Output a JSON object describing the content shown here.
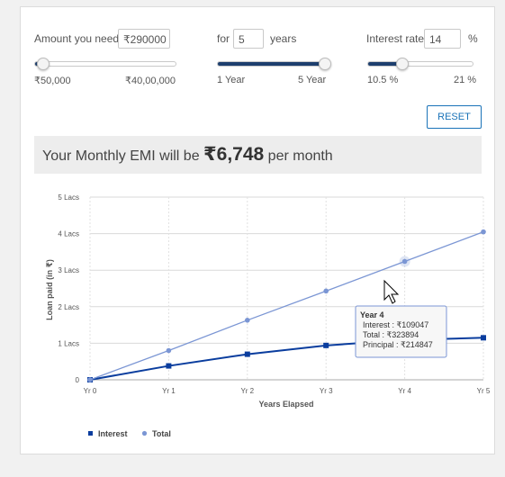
{
  "amount": {
    "label": "Amount you need",
    "prefix": "₹",
    "value": "290000",
    "min_label": "₹50,000",
    "max_label": "₹40,00,000",
    "level": 0.061
  },
  "tenure": {
    "label": "for",
    "value": "5",
    "unit": "years",
    "min_label": "1 Year",
    "max_label": "5 Year",
    "level": 1.0
  },
  "interest": {
    "label": "Interest rate",
    "value": "14",
    "unit": "%",
    "min_label": "10.5 %",
    "max_label": "21 %",
    "level": 0.333
  },
  "reset_label": "RESET",
  "emi": {
    "prefix": "Your Monthly EMI will be ",
    "value": "₹6,748",
    "suffix": " per month"
  },
  "tooltip": {
    "title": "Year 4",
    "lines": [
      "Interest : ₹109047",
      "Total : ₹323894",
      "Principal : ₹214847"
    ]
  },
  "colors": {
    "accent": "#1d3f6e",
    "button": "#1a73b8",
    "interest_series": "#0a3d9e",
    "total_series": "#7b96d4"
  },
  "chart_data": {
    "type": "line",
    "xlabel": "Years Elapsed",
    "ylabel": "Loan paid (in ₹)",
    "categories": [
      "Yr 0",
      "Yr 1",
      "Yr 2",
      "Yr 3",
      "Yr 4",
      "Yr 5"
    ],
    "y_ticks": [
      "0",
      "1 Lacs",
      "2 Lacs",
      "3 Lacs",
      "4 Lacs",
      "5 Lacs"
    ],
    "ylim": [
      0,
      500000
    ],
    "grid": true,
    "legend_position": "bottom-left",
    "series": [
      {
        "name": "Interest",
        "marker": "square",
        "values": [
          0,
          38000,
          70000,
          94000,
          109047,
          115000
        ]
      },
      {
        "name": "Total",
        "marker": "circle",
        "values": [
          0,
          80000,
          163000,
          243000,
          323894,
          404880
        ]
      }
    ]
  }
}
